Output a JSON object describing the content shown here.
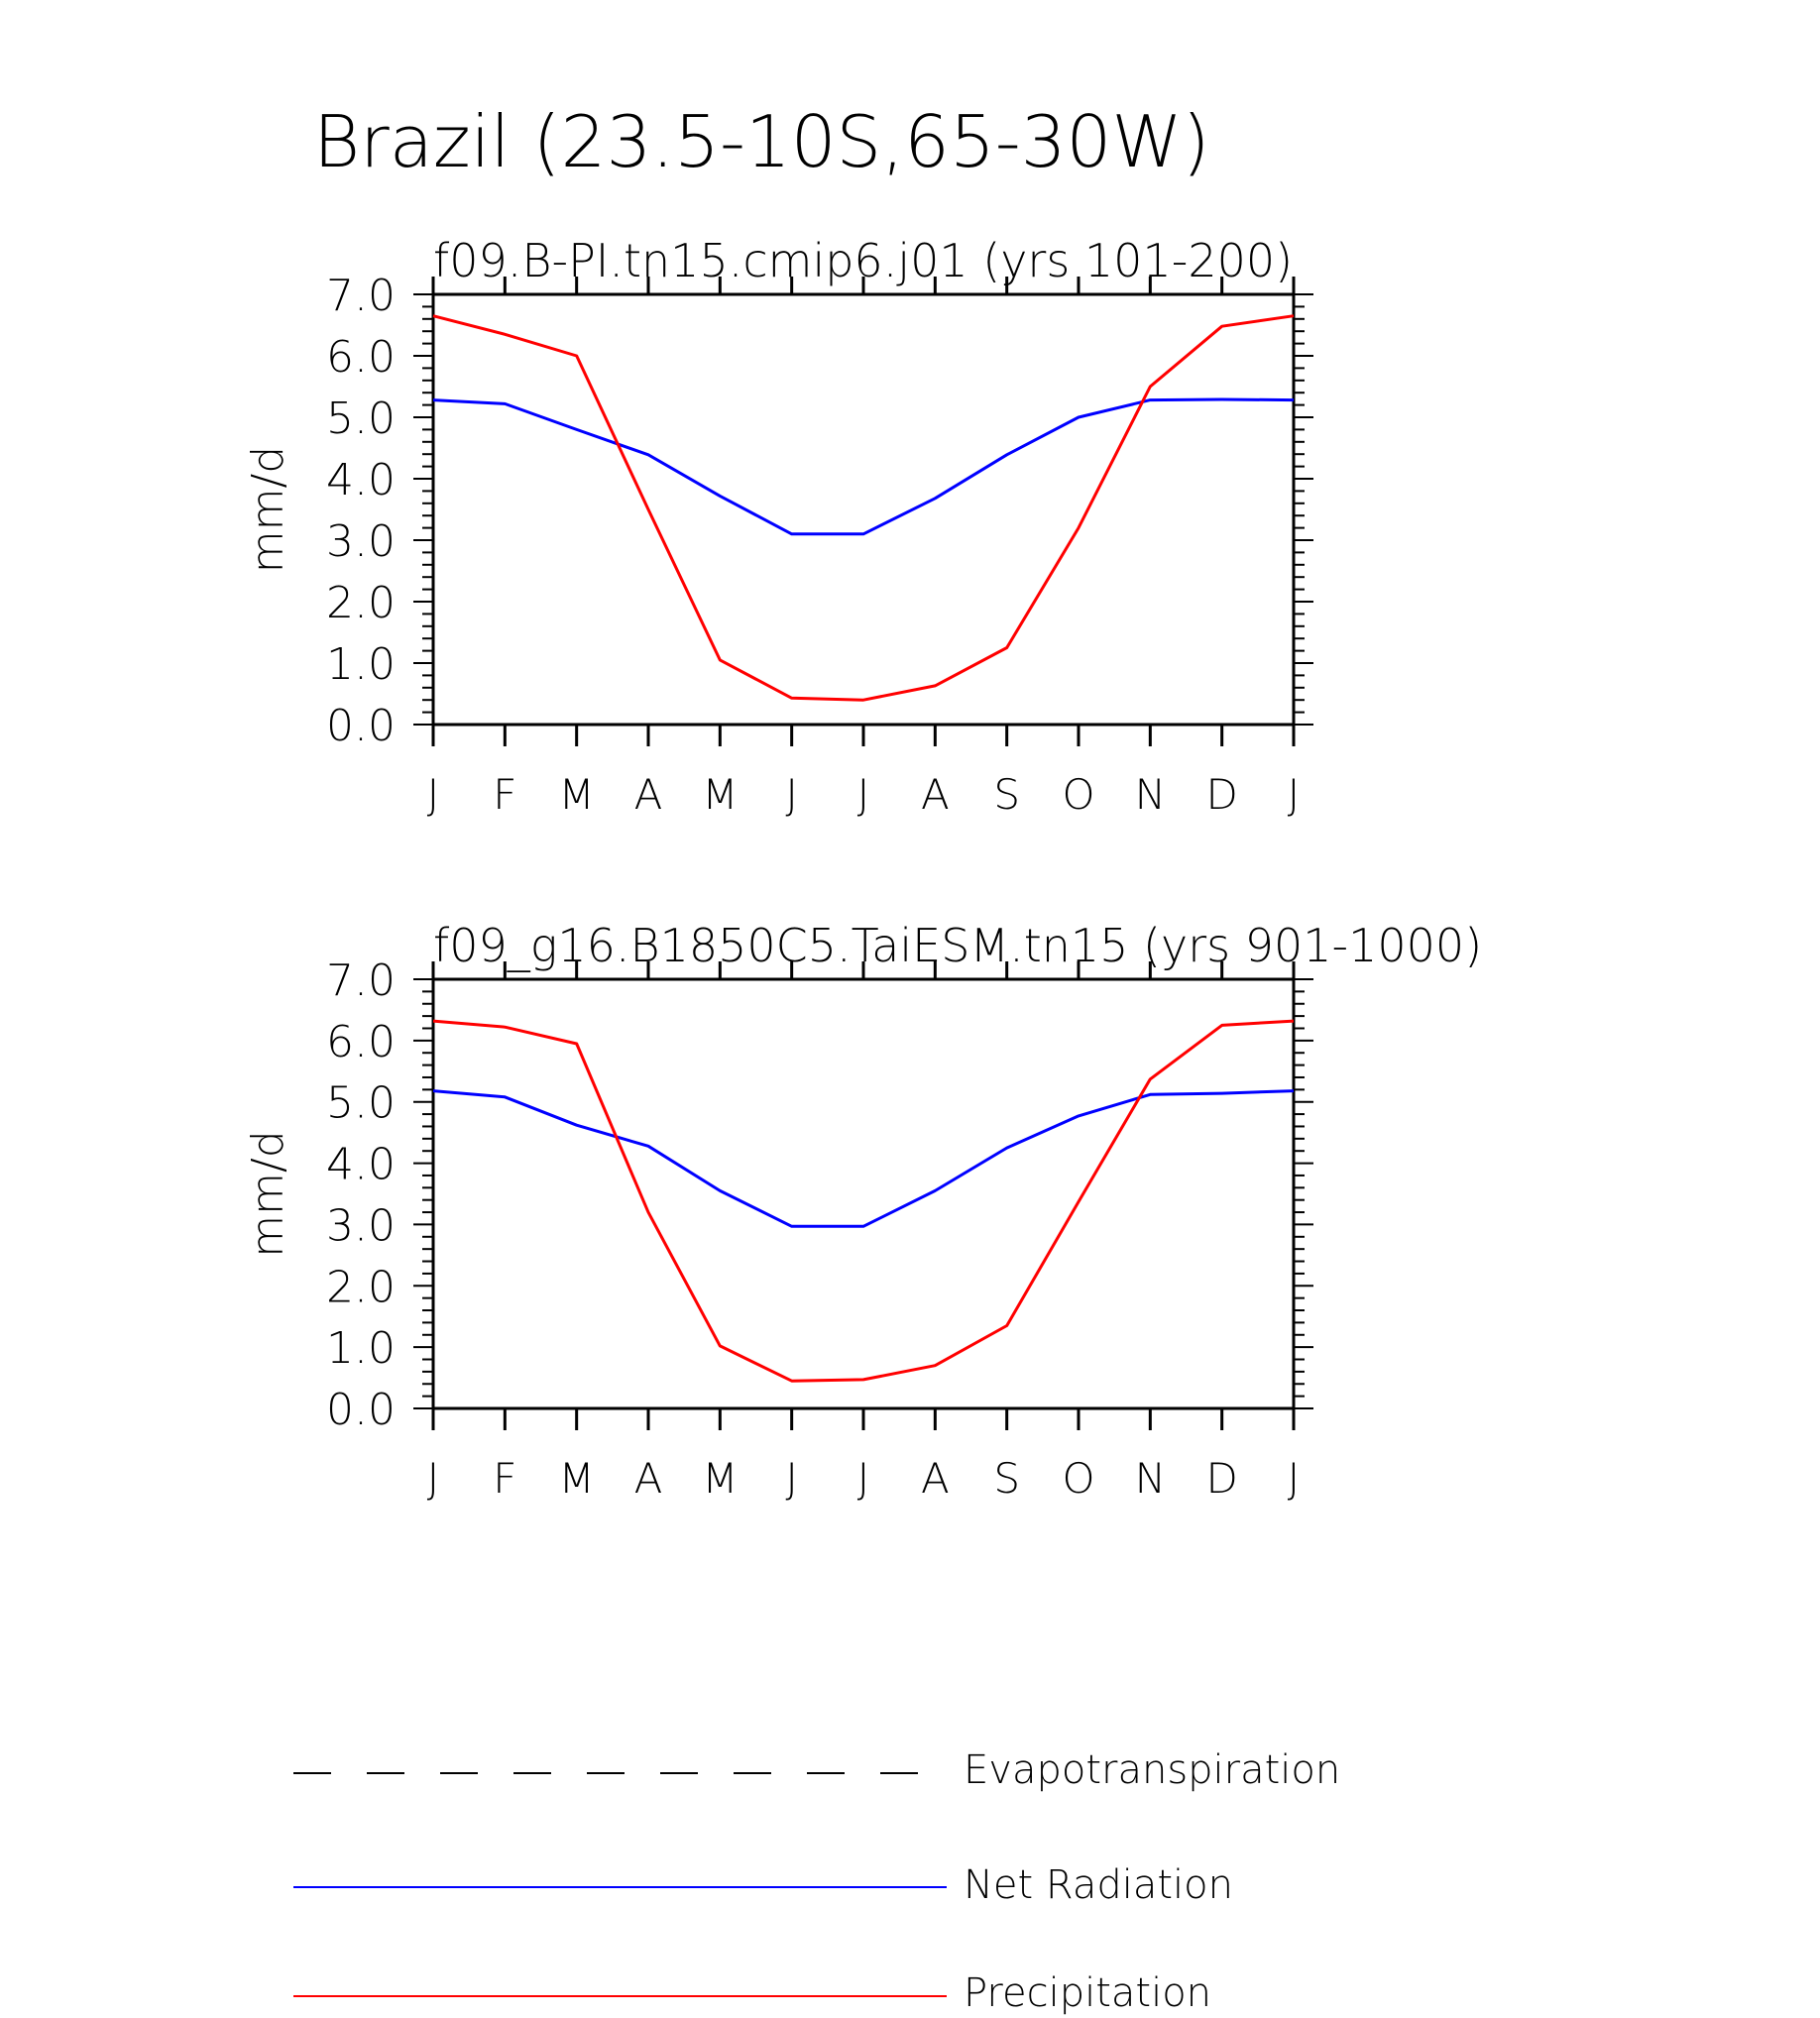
{
  "main_title": "Brazil (23.5-10S,65-30W)",
  "legend": {
    "items": [
      {
        "label": "Evapotranspiration",
        "color": "#000000",
        "dash": true
      },
      {
        "label": "Net Radiation",
        "color": "#0000ff",
        "dash": false
      },
      {
        "label": "Precipitation",
        "color": "#ff0000",
        "dash": false
      }
    ]
  },
  "chart_data": [
    {
      "type": "line",
      "title": "f09.B-PI.tn15.cmip6.j01 (yrs 101-200)",
      "ylabel": "mm/d",
      "xlabel": "",
      "ylim": [
        0,
        7
      ],
      "yticks": [
        "0.0",
        "1.0",
        "2.0",
        "3.0",
        "4.0",
        "5.0",
        "6.0",
        "7.0"
      ],
      "categories": [
        "J",
        "F",
        "M",
        "A",
        "M",
        "J",
        "J",
        "A",
        "S",
        "O",
        "N",
        "D",
        "J"
      ],
      "series": [
        {
          "name": "Net Radiation",
          "color": "#0000ff",
          "values": [
            5.28,
            5.22,
            4.8,
            4.39,
            3.72,
            3.1,
            3.1,
            3.68,
            4.39,
            5.0,
            5.28,
            5.29,
            5.28
          ]
        },
        {
          "name": "Precipitation",
          "color": "#ff0000",
          "values": [
            6.65,
            6.35,
            6.0,
            3.5,
            1.05,
            0.43,
            0.4,
            0.63,
            1.25,
            3.2,
            5.5,
            6.48,
            6.65
          ]
        }
      ]
    },
    {
      "type": "line",
      "title": "f09_g16.B1850C5.TaiESM.tn15 (yrs 901-1000)",
      "ylabel": "mm/d",
      "xlabel": "",
      "ylim": [
        0,
        7
      ],
      "yticks": [
        "0.0",
        "1.0",
        "2.0",
        "3.0",
        "4.0",
        "5.0",
        "6.0",
        "7.0"
      ],
      "categories": [
        "J",
        "F",
        "M",
        "A",
        "M",
        "J",
        "J",
        "A",
        "S",
        "O",
        "N",
        "D",
        "J"
      ],
      "series": [
        {
          "name": "Net Radiation",
          "color": "#0000ff",
          "values": [
            5.18,
            5.08,
            4.62,
            4.28,
            3.55,
            2.97,
            2.97,
            3.55,
            4.25,
            4.77,
            5.12,
            5.14,
            5.18
          ]
        },
        {
          "name": "Precipitation",
          "color": "#ff0000",
          "values": [
            6.32,
            6.22,
            5.95,
            3.2,
            1.02,
            0.45,
            0.47,
            0.7,
            1.35,
            3.37,
            5.37,
            6.25,
            6.32
          ]
        }
      ]
    }
  ]
}
